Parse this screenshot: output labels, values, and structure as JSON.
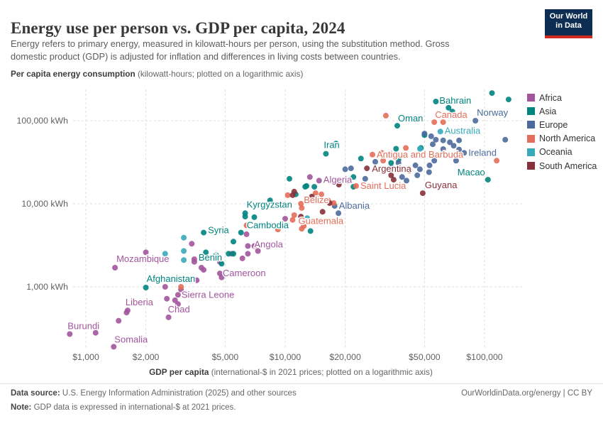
{
  "header": {
    "title": "Energy use per person vs. GDP per capita, 2024",
    "subtitle_line1": "Energy refers to primary energy, measured in kilowatt-hours per person, using the substitution method. Gross",
    "subtitle_line2": "domestic product (GDP) is adjusted for inflation and differences in living costs between countries.",
    "logo_line1": "Our World",
    "logo_line2": "in Data"
  },
  "axes": {
    "y_title_bold": "Per capita energy consumption",
    "y_title_rest": " (kilowatt-hours; plotted on a logarithmic axis)",
    "x_title_bold": "GDP per capita",
    "x_title_rest": " (international-$ in 2021 prices; plotted on a logarithmic axis)",
    "y_ticks": [
      {
        "value": 100000,
        "label": "100,000 kWh"
      },
      {
        "value": 10000,
        "label": "10,000 kWh"
      },
      {
        "value": 1000,
        "label": "1,000 kWh"
      }
    ],
    "x_ticks": [
      {
        "value": 1000,
        "label": "$1,000"
      },
      {
        "value": 2000,
        "label": "$2,000"
      },
      {
        "value": 5000,
        "label": "$5,000"
      },
      {
        "value": 10000,
        "label": "$10,000"
      },
      {
        "value": 20000,
        "label": "$20,000"
      },
      {
        "value": 50000,
        "label": "$50,000"
      },
      {
        "value": 100000,
        "label": "$100,000"
      }
    ]
  },
  "legend": [
    {
      "label": "Africa",
      "color": "#a2559c"
    },
    {
      "label": "Asia",
      "color": "#00847e"
    },
    {
      "label": "Europe",
      "color": "#4c6a9c"
    },
    {
      "label": "North America",
      "color": "#e56e5a"
    },
    {
      "label": "Oceania",
      "color": "#38aaba"
    },
    {
      "label": "South America",
      "color": "#883039"
    }
  ],
  "footer": {
    "source_bold": "Data source:",
    "source_rest": " U.S. Energy Information Administration (2025) and other sources",
    "note_bold": "Note:",
    "note_rest": " GDP data is expressed in international-$ at 2021 prices.",
    "attribution": "OurWorldinData.org/energy | CC BY"
  },
  "chart_data": {
    "type": "scatter",
    "title": "Energy use per person vs. GDP per capita, 2024",
    "xlabel": "GDP per capita (international-$ in 2021 prices)",
    "ylabel": "Per capita energy consumption (kWh)",
    "x_scale": "log",
    "y_scale": "log",
    "x_range": [
      800,
      160000
    ],
    "y_range": [
      150,
      250000
    ],
    "grid": true,
    "legend_position": "right",
    "series": [
      {
        "name": "Africa",
        "color": "#a2559c",
        "points": [
          {
            "gdp": 14800,
            "energy": 19000,
            "label": "Algeria",
            "dx": 6,
            "dy": 3,
            "anchor": "start"
          },
          {
            "gdp": 6500,
            "energy": 3100,
            "label": "Angola",
            "dx": 9,
            "dy": 2,
            "anchor": "start"
          },
          {
            "gdp": 3500,
            "energy": 2150,
            "label": "Benin",
            "dx": 6,
            "dy": 2,
            "anchor": "start",
            "label_color": "#00847e"
          },
          {
            "gdp": 1400,
            "energy": 1700,
            "label": "Mozambique",
            "dx": 2,
            "dy": -8,
            "anchor": "start"
          },
          {
            "gdp": 4700,
            "energy": 1450,
            "label": "Cameroon",
            "dx": 4,
            "dy": 4,
            "anchor": "start"
          },
          {
            "gdp": 2900,
            "energy": 800,
            "label": "Sierra Leone",
            "dx": 5,
            "dy": 4,
            "anchor": "start"
          },
          {
            "gdp": 1620,
            "energy": 520,
            "label": "Liberia",
            "dx": -3,
            "dy": -7,
            "anchor": "start"
          },
          {
            "gdp": 2600,
            "energy": 430,
            "label": "Chad",
            "dx": -1,
            "dy": -7,
            "anchor": "start"
          },
          {
            "gdp": 830,
            "energy": 270,
            "label": "Burundi",
            "dx": -3,
            "dy": -7,
            "anchor": "start"
          },
          {
            "gdp": 1380,
            "energy": 190,
            "label": "Somalia",
            "dx": 1,
            "dy": -6,
            "anchor": "start"
          },
          {
            "gdp": 1120,
            "energy": 280
          },
          {
            "gdp": 1460,
            "energy": 390
          },
          {
            "gdp": 1600,
            "energy": 490
          },
          {
            "gdp": 2500,
            "energy": 1000
          },
          {
            "gdp": 2550,
            "energy": 720
          },
          {
            "gdp": 2800,
            "energy": 690
          },
          {
            "gdp": 2900,
            "energy": 620
          },
          {
            "gdp": 3600,
            "energy": 1200
          },
          {
            "gdp": 4800,
            "energy": 1300
          },
          {
            "gdp": 2000,
            "energy": 2600
          },
          {
            "gdp": 3400,
            "energy": 3300
          },
          {
            "gdp": 3500,
            "energy": 2000
          },
          {
            "gdp": 3900,
            "energy": 1600
          },
          {
            "gdp": 5400,
            "energy": 2500
          },
          {
            "gdp": 6100,
            "energy": 2200
          },
          {
            "gdp": 6500,
            "energy": 2500
          },
          {
            "gdp": 7000,
            "energy": 3100
          },
          {
            "gdp": 7300,
            "energy": 2700
          },
          {
            "gdp": 6400,
            "energy": 4300
          },
          {
            "gdp": 3800,
            "energy": 1700
          },
          {
            "gdp": 4200,
            "energy": 2200
          },
          {
            "gdp": 4700,
            "energy": 2000
          },
          {
            "gdp": 10000,
            "energy": 6600
          },
          {
            "gdp": 13300,
            "energy": 21000
          },
          {
            "gdp": 3000,
            "energy": 930
          }
        ]
      },
      {
        "name": "Asia",
        "color": "#00847e",
        "points": [
          {
            "gdp": 57000,
            "energy": 170000,
            "label": "Bahrain",
            "dx": 5,
            "dy": 3,
            "anchor": "start"
          },
          {
            "gdp": 36500,
            "energy": 87000,
            "label": "Oman",
            "dx": 1,
            "dy": -6,
            "anchor": "start"
          },
          {
            "gdp": 16000,
            "energy": 40000,
            "label": "Iran",
            "dx": -3,
            "dy": -8,
            "anchor": "start"
          },
          {
            "gdp": 104000,
            "energy": 19500,
            "label": "Macao",
            "dx": -4,
            "dy": -6,
            "anchor": "end"
          },
          {
            "gdp": 6300,
            "energy": 7700,
            "label": "Kyrgyzstan",
            "dx": 2,
            "dy": -8,
            "anchor": "start"
          },
          {
            "gdp": 6000,
            "energy": 4500,
            "label": "Cambodia",
            "dx": 8,
            "dy": -6,
            "anchor": "start"
          },
          {
            "gdp": 3900,
            "energy": 4500,
            "label": "Syria",
            "dx": 6,
            "dy": 1,
            "anchor": "start"
          },
          {
            "gdp": 2000,
            "energy": 980,
            "label": "Afghanistan",
            "dx": 1,
            "dy": -8,
            "anchor": "start"
          },
          {
            "gdp": 109000,
            "energy": 215000
          },
          {
            "gdp": 132000,
            "energy": 180000
          },
          {
            "gdp": 66000,
            "energy": 143000
          },
          {
            "gdp": 69000,
            "energy": 129000
          },
          {
            "gdp": 50000,
            "energy": 67000
          },
          {
            "gdp": 48000,
            "energy": 47000
          },
          {
            "gdp": 36000,
            "energy": 46000
          },
          {
            "gdp": 24000,
            "energy": 35000
          },
          {
            "gdp": 18000,
            "energy": 53000
          },
          {
            "gdp": 34000,
            "energy": 31000
          },
          {
            "gdp": 37000,
            "energy": 34000
          },
          {
            "gdp": 22000,
            "energy": 21000
          },
          {
            "gdp": 10500,
            "energy": 20000
          },
          {
            "gdp": 12800,
            "energy": 16400
          },
          {
            "gdp": 22000,
            "energy": 16000
          },
          {
            "gdp": 13400,
            "energy": 4700
          },
          {
            "gdp": 11300,
            "energy": 13000
          },
          {
            "gdp": 14000,
            "energy": 16000
          },
          {
            "gdp": 12600,
            "energy": 16000
          },
          {
            "gdp": 5500,
            "energy": 3500
          },
          {
            "gdp": 5200,
            "energy": 2500
          },
          {
            "gdp": 5500,
            "energy": 2500
          },
          {
            "gdp": 4800,
            "energy": 1900
          },
          {
            "gdp": 4000,
            "energy": 2600
          },
          {
            "gdp": 4500,
            "energy": 2400
          },
          {
            "gdp": 8400,
            "energy": 11000
          },
          {
            "gdp": 6300,
            "energy": 7000
          },
          {
            "gdp": 7000,
            "energy": 6900
          }
        ]
      },
      {
        "name": "Europe",
        "color": "#4c6a9c",
        "points": [
          {
            "gdp": 90000,
            "energy": 100000,
            "label": "Norway",
            "dx": 2,
            "dy": -7,
            "anchor": "start"
          },
          {
            "gdp": 79000,
            "energy": 41000,
            "label": "Ireland",
            "dx": 6,
            "dy": 4,
            "anchor": "start"
          },
          {
            "gdp": 17700,
            "energy": 9400,
            "label": "Albania",
            "dx": 6,
            "dy": 4,
            "anchor": "start"
          },
          {
            "gdp": 50000,
            "energy": 70000
          },
          {
            "gdp": 54000,
            "energy": 65000
          },
          {
            "gdp": 57000,
            "energy": 59000
          },
          {
            "gdp": 62000,
            "energy": 58000
          },
          {
            "gdp": 67000,
            "energy": 55000
          },
          {
            "gdp": 74500,
            "energy": 58000
          },
          {
            "gdp": 55000,
            "energy": 52000
          },
          {
            "gdp": 70000,
            "energy": 50000
          },
          {
            "gdp": 62000,
            "energy": 45500
          },
          {
            "gdp": 74500,
            "energy": 45000
          },
          {
            "gdp": 56000,
            "energy": 33000
          },
          {
            "gdp": 72000,
            "energy": 33000
          },
          {
            "gdp": 45000,
            "energy": 29000
          },
          {
            "gdp": 47400,
            "energy": 26000
          },
          {
            "gdp": 53000,
            "energy": 29000
          },
          {
            "gdp": 52700,
            "energy": 24000
          },
          {
            "gdp": 38600,
            "energy": 21000
          },
          {
            "gdp": 40600,
            "energy": 19000
          },
          {
            "gdp": 37000,
            "energy": 31000
          },
          {
            "gdp": 34200,
            "energy": 27000
          },
          {
            "gdp": 46000,
            "energy": 22000
          },
          {
            "gdp": 28300,
            "energy": 32000
          },
          {
            "gdp": 21400,
            "energy": 26700
          },
          {
            "gdp": 20000,
            "energy": 26000
          },
          {
            "gdp": 25200,
            "energy": 20000
          },
          {
            "gdp": 18500,
            "energy": 7700
          },
          {
            "gdp": 25200,
            "energy": 9100
          },
          {
            "gdp": 127000,
            "energy": 59000
          }
        ]
      },
      {
        "name": "North America",
        "color": "#e56e5a",
        "points": [
          {
            "gdp": 56000,
            "energy": 96000,
            "label": "Canada",
            "dx": 1,
            "dy": -6,
            "anchor": "start"
          },
          {
            "gdp": 27400,
            "energy": 39000,
            "label": "Antigua and Barbuda",
            "dx": 6,
            "dy": 4,
            "anchor": "start"
          },
          {
            "gdp": 22700,
            "energy": 16400,
            "label": "Saint Lucia",
            "dx": 6,
            "dy": 4,
            "anchor": "start"
          },
          {
            "gdp": 12000,
            "energy": 10000,
            "label": "Belize",
            "dx": 4,
            "dy": -1,
            "anchor": "start"
          },
          {
            "gdp": 10900,
            "energy": 6400,
            "label": "Guatemala",
            "dx": 8,
            "dy": 6,
            "anchor": "start"
          },
          {
            "gdp": 32000,
            "energy": 115000
          },
          {
            "gdp": 62000,
            "energy": 96000
          },
          {
            "gdp": 42000,
            "energy": 25000
          },
          {
            "gdp": 30500,
            "energy": 41000
          },
          {
            "gdp": 34400,
            "energy": 39000
          },
          {
            "gdp": 40300,
            "energy": 47000
          },
          {
            "gdp": 115000,
            "energy": 33000
          },
          {
            "gdp": 75000,
            "energy": 39000
          },
          {
            "gdp": 31000,
            "energy": 33000
          },
          {
            "gdp": 15200,
            "energy": 13000
          },
          {
            "gdp": 14200,
            "energy": 13400
          },
          {
            "gdp": 16400,
            "energy": 11000
          },
          {
            "gdp": 17500,
            "energy": 10200
          },
          {
            "gdp": 12100,
            "energy": 5000
          },
          {
            "gdp": 12400,
            "energy": 5400
          },
          {
            "gdp": 11100,
            "energy": 7300
          },
          {
            "gdp": 10300,
            "energy": 12700
          },
          {
            "gdp": 12100,
            "energy": 8900
          },
          {
            "gdp": 6400,
            "energy": 5500
          },
          {
            "gdp": 3000,
            "energy": 1000
          },
          {
            "gdp": 9200,
            "energy": 4900
          }
        ]
      },
      {
        "name": "Oceania",
        "color": "#38aaba",
        "points": [
          {
            "gdp": 60000,
            "energy": 74000,
            "label": "Australia",
            "dx": 6,
            "dy": 3,
            "anchor": "start"
          },
          {
            "gdp": 47400,
            "energy": 46000
          },
          {
            "gdp": 3100,
            "energy": 2700
          },
          {
            "gdp": 2500,
            "energy": 2500
          },
          {
            "gdp": 3100,
            "energy": 3900
          },
          {
            "gdp": 3100,
            "energy": 2100
          },
          {
            "gdp": 12900,
            "energy": 6700
          }
        ]
      },
      {
        "name": "South America",
        "color": "#883039",
        "points": [
          {
            "gdp": 25700,
            "energy": 26700,
            "label": "Argentina",
            "dx": 7,
            "dy": 5,
            "anchor": "start"
          },
          {
            "gdp": 49000,
            "energy": 13400,
            "label": "Guyana",
            "dx": 3,
            "dy": -7,
            "anchor": "start"
          },
          {
            "gdp": 34000,
            "energy": 22000
          },
          {
            "gdp": 35000,
            "energy": 19500
          },
          {
            "gdp": 13600,
            "energy": 12200
          },
          {
            "gdp": 12000,
            "energy": 7000
          },
          {
            "gdp": 15400,
            "energy": 8000
          },
          {
            "gdp": 16700,
            "energy": 10200
          },
          {
            "gdp": 11100,
            "energy": 14000
          },
          {
            "gdp": 18600,
            "energy": 17000
          },
          {
            "gdp": 20600,
            "energy": 18800
          },
          {
            "gdp": 10900,
            "energy": 12700
          }
        ]
      }
    ]
  }
}
